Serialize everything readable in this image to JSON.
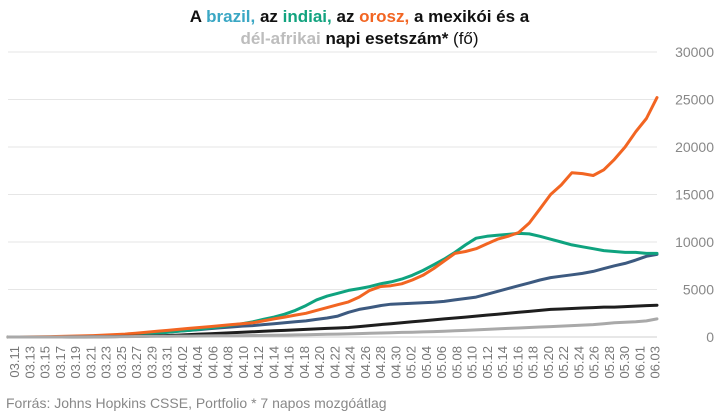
{
  "title": {
    "p1": "A ",
    "brazil": "brazil,",
    "p2": " az ",
    "india": "indiai,",
    "p3": " az ",
    "orosz": "orosz,",
    "p4": " a mexikói és a",
    "delafrikai": "dél-afrikai",
    "p5": " napi esetszám*",
    "unit": " (fő)"
  },
  "source": "Forrás: Johns Hopkins CSSE, Portfolio   * 7 napos mozgóátlag",
  "chart_data": {
    "type": "line",
    "title": "A brazil, az indiai, az orosz, a mexikói és a dél-afrikai napi esetszám* (fő)",
    "x_tick_labels": [
      "03.11",
      "03.13",
      "03.15",
      "03.17",
      "03.19",
      "03.21",
      "03.23",
      "03.25",
      "03.27",
      "03.29",
      "03.31",
      "04.02",
      "04.04",
      "04.06",
      "04.08",
      "04.10",
      "04.12",
      "04.14",
      "04.16",
      "04.18",
      "04.20",
      "04.22",
      "04.24",
      "04.26",
      "04.28",
      "04.30",
      "05.02",
      "05.04",
      "05.06",
      "05.08",
      "05.10",
      "05.12",
      "05.14",
      "05.16",
      "05.18",
      "05.20",
      "05.22",
      "05.24",
      "05.26",
      "05.28",
      "05.30",
      "06.01",
      "06.03"
    ],
    "ylim": [
      0,
      30000
    ],
    "y_ticks": [
      0,
      5000,
      10000,
      15000,
      20000,
      25000,
      30000
    ],
    "grid": true,
    "legend": "none",
    "series": [
      {
        "key": "brazil",
        "color": "#3d5a80",
        "values": [
          0,
          0,
          0,
          0,
          0,
          10,
          20,
          40,
          60,
          80,
          120,
          160,
          220,
          320,
          420,
          520,
          620,
          700,
          780,
          880,
          980,
          1050,
          1150,
          1200,
          1300,
          1400,
          1500,
          1600,
          1700,
          1850,
          2000,
          2200,
          2600,
          2900,
          3100,
          3300,
          3450,
          3500,
          3550,
          3600,
          3650,
          3750,
          3900,
          4050,
          4200,
          4500,
          4800,
          5100,
          5400,
          5700,
          6000,
          6250,
          6400,
          6550,
          6700,
          6900,
          7200,
          7500,
          7750,
          8100,
          8500,
          8700
        ]
      },
      {
        "key": "india",
        "color": "#0fa37f",
        "values": [
          0,
          0,
          0,
          0,
          5,
          10,
          20,
          40,
          60,
          80,
          100,
          150,
          220,
          300,
          400,
          500,
          600,
          700,
          820,
          950,
          1100,
          1250,
          1400,
          1600,
          1850,
          2100,
          2400,
          2800,
          3300,
          3900,
          4300,
          4600,
          4900,
          5100,
          5300,
          5600,
          5800,
          6100,
          6500,
          7000,
          7600,
          8200,
          8900,
          9700,
          10400,
          10600,
          10700,
          10800,
          10900,
          10850,
          10600,
          10300,
          10000,
          9700,
          9500,
          9300,
          9100,
          9000,
          8900,
          8900,
          8800,
          8800
        ]
      },
      {
        "key": "orosz",
        "color": "#f26522",
        "values": [
          0,
          5,
          10,
          20,
          40,
          60,
          90,
          120,
          150,
          200,
          250,
          300,
          400,
          500,
          600,
          700,
          800,
          900,
          1000,
          1100,
          1200,
          1300,
          1400,
          1500,
          1700,
          1900,
          2100,
          2300,
          2500,
          2800,
          3100,
          3400,
          3700,
          4200,
          4900,
          5300,
          5400,
          5600,
          6000,
          6500,
          7200,
          8000,
          8800,
          9000,
          9300,
          9800,
          10300,
          10600,
          11000,
          12000,
          13500,
          15000,
          16000,
          17300,
          17200,
          17000,
          17600,
          18700,
          20000,
          21600,
          23000,
          25200
        ]
      },
      {
        "key": "mexikoi",
        "color": "#1e1e1e",
        "values": [
          0,
          0,
          0,
          0,
          0,
          5,
          10,
          15,
          20,
          30,
          40,
          60,
          80,
          100,
          130,
          160,
          200,
          250,
          300,
          350,
          400,
          450,
          500,
          550,
          600,
          650,
          700,
          750,
          800,
          850,
          900,
          950,
          1000,
          1100,
          1200,
          1300,
          1400,
          1500,
          1600,
          1700,
          1800,
          1900,
          2000,
          2100,
          2200,
          2300,
          2400,
          2500,
          2600,
          2700,
          2800,
          2900,
          2950,
          3000,
          3050,
          3100,
          3150,
          3150,
          3200,
          3250,
          3300,
          3350
        ]
      },
      {
        "key": "delafrikai",
        "color": "#a9a9a9",
        "values": [
          0,
          0,
          0,
          0,
          0,
          5,
          10,
          15,
          20,
          25,
          30,
          40,
          50,
          60,
          70,
          80,
          90,
          100,
          110,
          120,
          130,
          140,
          150,
          160,
          170,
          180,
          200,
          220,
          240,
          260,
          280,
          300,
          330,
          360,
          390,
          420,
          450,
          480,
          510,
          540,
          570,
          600,
          650,
          700,
          750,
          800,
          850,
          900,
          950,
          1000,
          1050,
          1100,
          1150,
          1200,
          1250,
          1300,
          1400,
          1500,
          1550,
          1600,
          1700,
          1900
        ]
      }
    ]
  }
}
